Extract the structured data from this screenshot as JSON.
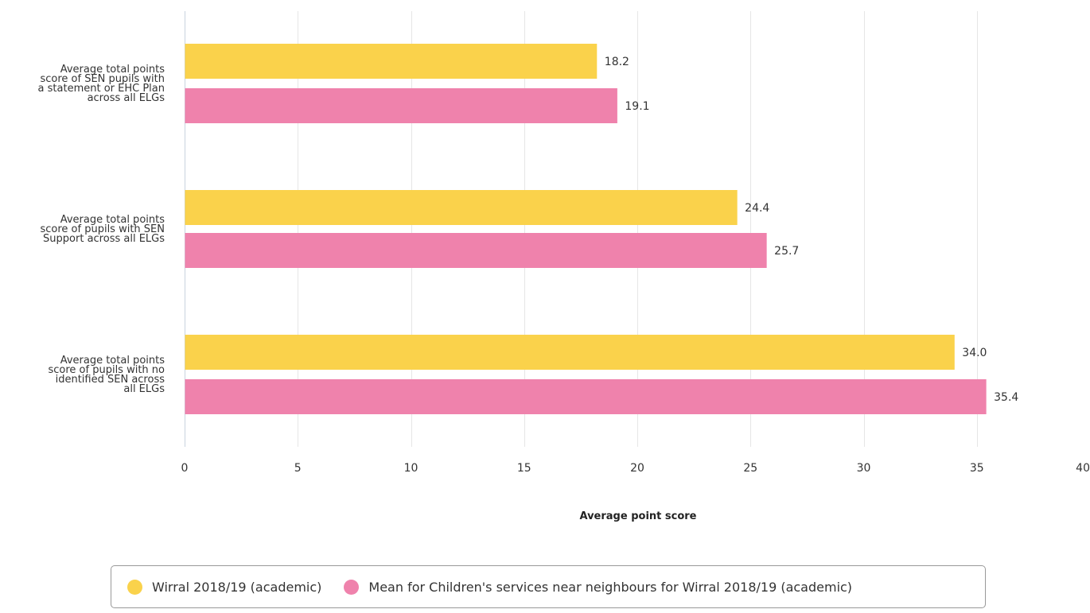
{
  "chart_data": {
    "type": "bar",
    "orientation": "horizontal",
    "categories": [
      "Average total points score of SEN pupils with a statement or EHC Plan across all ELGs",
      "Average total points score of pupils with SEN Support across all ELGs",
      "Average total points score of pupils with no identified SEN across all ELGs"
    ],
    "category_lines": [
      [
        "Average total points",
        "score of SEN pupils with",
        "a statement or EHC Plan",
        "across all ELGs"
      ],
      [
        "Average total points",
        "score of pupils with SEN",
        "Support across all ELGs"
      ],
      [
        "Average total points",
        "score of pupils with no",
        "identified SEN across",
        "all ELGs"
      ]
    ],
    "series": [
      {
        "name": "Wirral 2018/19 (academic)",
        "color": "#fad24b",
        "values": [
          18.2,
          24.4,
          34.0
        ],
        "labels": [
          "18.2",
          "24.4",
          "34.0"
        ]
      },
      {
        "name": "Mean for Children's services near neighbours for Wirral 2018/19 (academic)",
        "color": "#ef82ac",
        "values": [
          19.1,
          25.7,
          35.4
        ],
        "labels": [
          "19.1",
          "25.7",
          "35.4"
        ]
      }
    ],
    "xlabel": "Average point score",
    "ylabel": "",
    "xlim": [
      0,
      40
    ],
    "ticks": [
      "0",
      "5",
      "10",
      "15",
      "20",
      "25",
      "30",
      "35",
      "40"
    ],
    "grid": true,
    "legend_position": "bottom"
  }
}
